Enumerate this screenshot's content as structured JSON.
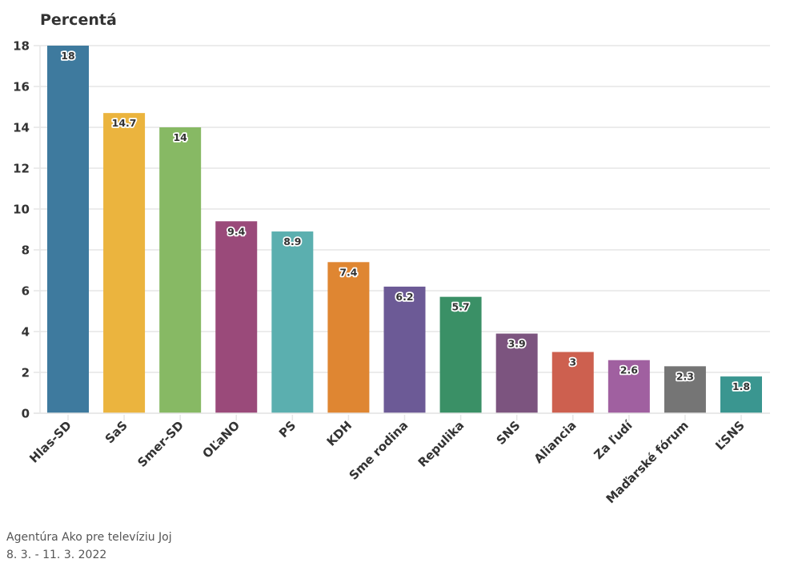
{
  "chart_data": {
    "type": "bar",
    "title": "",
    "ylabel": "Percentá",
    "xlabel": "",
    "ylim": [
      0,
      18
    ],
    "yticks": [
      0,
      2,
      4,
      6,
      8,
      10,
      12,
      14,
      16,
      18
    ],
    "grid": true,
    "legend": "none",
    "categories": [
      "Hlas-SD",
      "SaS",
      "Smer-SD",
      "OĽaNO",
      "PS",
      "KDH",
      "Sme rodina",
      "Repulika",
      "SNS",
      "Aliancia",
      "Za ľudí",
      "Maďarské fórum",
      "ĽSNS"
    ],
    "values": [
      18,
      14.7,
      14,
      9.4,
      8.9,
      7.4,
      6.2,
      5.7,
      3.9,
      3,
      2.6,
      2.3,
      1.8
    ],
    "data_labels": [
      "18",
      "14.7",
      "14",
      "9.4",
      "8.9",
      "7.4",
      "6.2",
      "5.7",
      "3.9",
      "3",
      "2.6",
      "2.3",
      "1.8"
    ],
    "colors": [
      "#3e7a9e",
      "#ebb43e",
      "#87b964",
      "#9a4a7a",
      "#5bafaf",
      "#df8632",
      "#6c5a96",
      "#3a9066",
      "#7c547f",
      "#cd604f",
      "#a060a0",
      "#757575",
      "#3a9690"
    ]
  },
  "footer": {
    "source": "Agentúra Ako pre televíziu Joj",
    "date_range": "8. 3. - 11. 3. 2022"
  }
}
